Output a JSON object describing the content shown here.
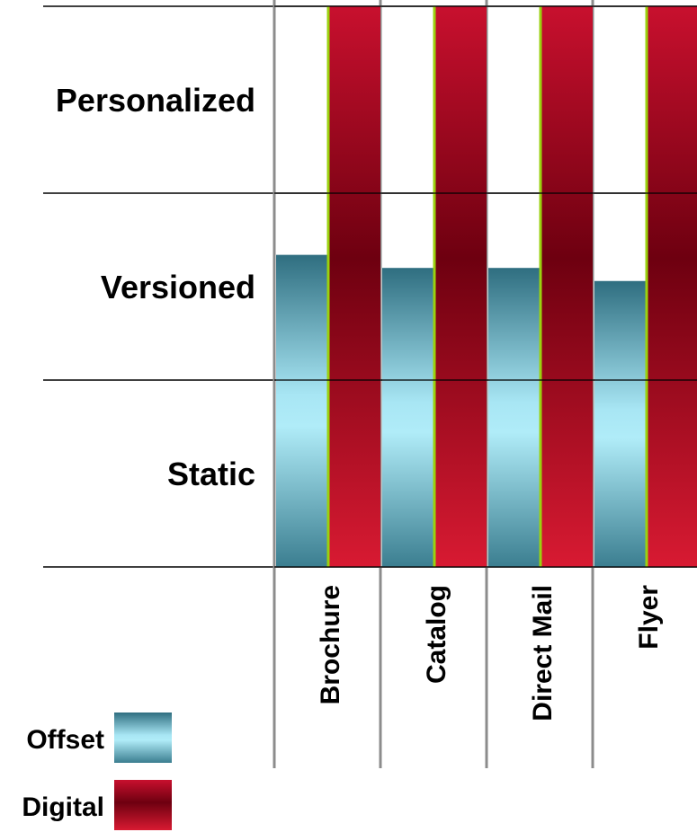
{
  "chart_data": {
    "type": "bar",
    "title": "",
    "xlabel": "",
    "ylabel": "",
    "y_levels": [
      "Static",
      "Versioned",
      "Personalized"
    ],
    "categories": [
      "Brochure",
      "Catalog",
      "Direct Mail",
      "Flyer"
    ],
    "ylim": [
      0,
      3
    ],
    "grid": true,
    "legend_position": "bottom-left",
    "series": [
      {
        "name": "Offset",
        "color": "#3d8596",
        "values": [
          1.67,
          1.6,
          1.6,
          1.53
        ]
      },
      {
        "name": "Digital",
        "color": "#c8102e",
        "values": [
          3,
          3,
          3,
          3
        ]
      }
    ]
  }
}
